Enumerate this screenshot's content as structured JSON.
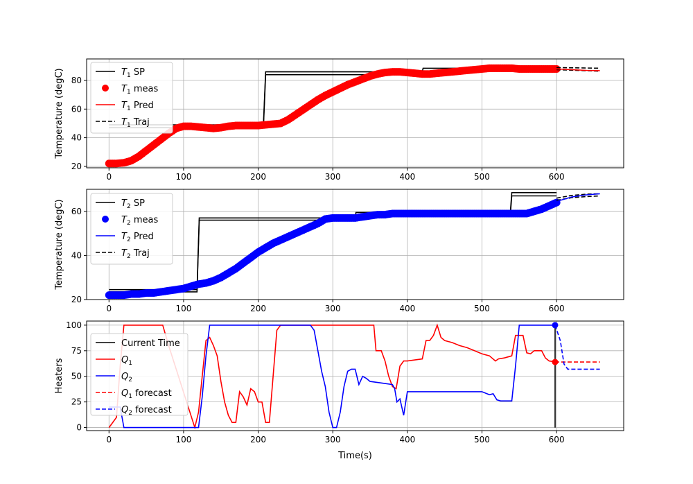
{
  "chart_data": [
    {
      "type": "line",
      "ylabel": "Temperature (degC)",
      "xlabel": "",
      "xlim": [
        -30,
        690
      ],
      "ylim": [
        19,
        95
      ],
      "xticks": [
        0,
        100,
        200,
        300,
        400,
        500,
        600
      ],
      "yticks": [
        20,
        40,
        60,
        80
      ],
      "grid": true,
      "legend_position": "upper-left",
      "legend": [
        {
          "sym": "T",
          "sub": "1",
          "suffix": " SP",
          "style": "solid",
          "color": "#000000"
        },
        {
          "sym": "T",
          "sub": "1",
          "suffix": " meas",
          "style": "marker",
          "color": "#ff0000"
        },
        {
          "sym": "T",
          "sub": "1",
          "suffix": " Pred",
          "style": "solid",
          "color": "#ff0000"
        },
        {
          "sym": "T",
          "sub": "1",
          "suffix": " Traj",
          "style": "dashed",
          "color": "#000000"
        }
      ],
      "series": [
        {
          "key": "sp_hi",
          "color": "#000000",
          "style": "solid",
          "x": [
            0,
            207,
            210,
            420,
            421,
            600
          ],
          "y": [
            49,
            49,
            86,
            86,
            88.5,
            88.5
          ]
        },
        {
          "key": "sp_lo",
          "color": "#000000",
          "style": "solid",
          "x": [
            0,
            207,
            210,
            420,
            421,
            600
          ],
          "y": [
            47,
            47,
            84,
            84,
            86.5,
            86.5
          ]
        },
        {
          "key": "meas",
          "color": "#ff0000",
          "style": "marker",
          "x": [
            0,
            10,
            20,
            30,
            40,
            50,
            60,
            70,
            80,
            90,
            100,
            110,
            120,
            130,
            140,
            150,
            160,
            170,
            180,
            190,
            200,
            210,
            220,
            230,
            240,
            250,
            260,
            270,
            280,
            290,
            300,
            310,
            320,
            330,
            340,
            350,
            360,
            370,
            380,
            390,
            400,
            410,
            420,
            430,
            440,
            450,
            460,
            470,
            480,
            490,
            500,
            510,
            520,
            530,
            540,
            550,
            560,
            570,
            580,
            590,
            600
          ],
          "y": [
            22,
            22,
            22.5,
            24,
            27,
            31,
            35,
            39,
            43,
            46.5,
            48,
            48,
            47.5,
            47,
            46.5,
            47,
            48,
            48.5,
            48.5,
            48.5,
            48.5,
            49,
            49.5,
            50,
            52.5,
            56,
            59.5,
            63,
            66.5,
            69.5,
            72,
            74.5,
            77,
            79,
            81,
            83,
            84.5,
            85.5,
            86,
            86,
            85.5,
            85,
            84.5,
            84.5,
            85,
            85.5,
            86,
            86.5,
            87,
            87.5,
            88,
            88.5,
            88.5,
            88.5,
            88.5,
            88,
            88,
            88,
            88,
            88,
            88
          ]
        },
        {
          "key": "traj_a",
          "color": "#000000",
          "style": "dashed",
          "x": [
            600,
            658
          ],
          "y": [
            89,
            88.5
          ]
        },
        {
          "key": "traj_b",
          "color": "#000000",
          "style": "dashed",
          "x": [
            600,
            658
          ],
          "y": [
            87.5,
            86.5
          ]
        },
        {
          "key": "pred",
          "color": "#ff0000",
          "style": "solid",
          "x": [
            600,
            620,
            640,
            658
          ],
          "y": [
            88,
            87.5,
            87,
            86.8
          ]
        }
      ]
    },
    {
      "type": "line",
      "ylabel": "Temperature (degC)",
      "xlabel": "",
      "xlim": [
        -30,
        690
      ],
      "ylim": [
        20,
        70
      ],
      "xticks": [
        0,
        100,
        200,
        300,
        400,
        500,
        600
      ],
      "yticks": [
        20,
        40,
        60
      ],
      "grid": true,
      "legend_position": "upper-left",
      "legend": [
        {
          "sym": "T",
          "sub": "2",
          "suffix": " SP",
          "style": "solid",
          "color": "#000000"
        },
        {
          "sym": "T",
          "sub": "2",
          "suffix": " meas",
          "style": "marker",
          "color": "#0000ff"
        },
        {
          "sym": "T",
          "sub": "2",
          "suffix": " Pred",
          "style": "solid",
          "color": "#0000ff"
        },
        {
          "sym": "T",
          "sub": "2",
          "suffix": " Traj",
          "style": "dashed",
          "color": "#000000"
        }
      ],
      "series": [
        {
          "key": "sp_hi",
          "color": "#000000",
          "style": "solid",
          "x": [
            0,
            118,
            121,
            330,
            331,
            538,
            540,
            600
          ],
          "y": [
            24.5,
            24.5,
            57,
            57,
            59.5,
            59.5,
            68.5,
            68.5
          ]
        },
        {
          "key": "sp_lo",
          "color": "#000000",
          "style": "solid",
          "x": [
            0,
            118,
            121,
            330,
            331,
            538,
            540,
            600
          ],
          "y": [
            23.5,
            23.5,
            56,
            56,
            58.5,
            58.5,
            67,
            67
          ]
        },
        {
          "key": "meas",
          "color": "#0000ff",
          "style": "marker",
          "x": [
            0,
            10,
            20,
            30,
            40,
            50,
            60,
            70,
            80,
            90,
            100,
            110,
            120,
            130,
            140,
            150,
            160,
            170,
            180,
            190,
            200,
            210,
            220,
            230,
            240,
            250,
            260,
            270,
            280,
            290,
            300,
            310,
            320,
            330,
            340,
            350,
            360,
            370,
            380,
            390,
            400,
            410,
            420,
            430,
            440,
            450,
            460,
            470,
            480,
            490,
            500,
            510,
            520,
            530,
            540,
            550,
            560,
            570,
            580,
            590,
            600
          ],
          "y": [
            22,
            22,
            22,
            22.5,
            22.5,
            23,
            23,
            23.5,
            24,
            24.5,
            25,
            26,
            27,
            27.5,
            28.5,
            30,
            32,
            34,
            36.5,
            39,
            41.5,
            43.5,
            45.5,
            47,
            48.5,
            50,
            51.5,
            53,
            54.5,
            56.5,
            57,
            57,
            57,
            57,
            57.5,
            58,
            58.5,
            58.5,
            59,
            59,
            59,
            59,
            59,
            59,
            59,
            59,
            59,
            59,
            59,
            59,
            59,
            59,
            59,
            59,
            59,
            59,
            59,
            60,
            61,
            62.5,
            64
          ]
        },
        {
          "key": "traj_a",
          "color": "#000000",
          "style": "dashed",
          "x": [
            600,
            620,
            640,
            658
          ],
          "y": [
            66,
            67.2,
            67.8,
            68
          ]
        },
        {
          "key": "traj_b",
          "color": "#000000",
          "style": "dashed",
          "x": [
            600,
            620,
            640,
            658
          ],
          "y": [
            65,
            66.2,
            66.7,
            67
          ]
        },
        {
          "key": "pred",
          "color": "#0000ff",
          "style": "solid",
          "x": [
            600,
            620,
            640,
            658
          ],
          "y": [
            64.5,
            66.5,
            67.5,
            68
          ]
        }
      ]
    },
    {
      "type": "line",
      "ylabel": "Heaters",
      "xlabel": "Time(s)",
      "xlim": [
        -30,
        690
      ],
      "ylim": [
        -3,
        104
      ],
      "xticks": [
        0,
        100,
        200,
        300,
        400,
        500,
        600
      ],
      "yticks": [
        0,
        25,
        50,
        75,
        100
      ],
      "grid": true,
      "legend_position": "upper-left",
      "legend": [
        {
          "sym": "",
          "sub": "",
          "suffix": "Current Time",
          "style": "solid",
          "color": "#000000"
        },
        {
          "sym": "Q",
          "sub": "1",
          "suffix": "",
          "style": "solid",
          "color": "#ff0000"
        },
        {
          "sym": "Q",
          "sub": "2",
          "suffix": "",
          "style": "solid",
          "color": "#0000ff"
        },
        {
          "sym": "Q",
          "sub": "1",
          "suffix": " forecast",
          "style": "dashed",
          "color": "#ff0000"
        },
        {
          "sym": "Q",
          "sub": "2",
          "suffix": " forecast",
          "style": "dashed",
          "color": "#0000ff"
        }
      ],
      "series": [
        {
          "key": "current_time",
          "color": "#000000",
          "style": "solid",
          "x": [
            598,
            598
          ],
          "y": [
            0,
            100
          ]
        },
        {
          "key": "Q1",
          "color": "#ff0000",
          "style": "solid",
          "x": [
            0,
            10,
            15,
            20,
            72,
            80,
            115,
            120,
            125,
            130,
            135,
            140,
            145,
            150,
            155,
            160,
            165,
            170,
            175,
            180,
            185,
            190,
            195,
            200,
            205,
            210,
            215,
            220,
            225,
            230,
            240,
            250,
            260,
            270,
            280,
            290,
            300,
            310,
            320,
            330,
            340,
            355,
            358,
            365,
            370,
            375,
            380,
            385,
            390,
            395,
            400,
            410,
            420,
            425,
            430,
            435,
            440,
            445,
            450,
            460,
            470,
            480,
            490,
            500,
            510,
            518,
            522,
            530,
            540,
            545,
            548,
            555,
            560,
            565,
            570,
            580,
            585,
            590,
            600
          ],
          "y": [
            0,
            10,
            60,
            100,
            100,
            80,
            0,
            15,
            50,
            85,
            88,
            80,
            70,
            45,
            25,
            12,
            5,
            5,
            35,
            30,
            22,
            38,
            35,
            25,
            25,
            5,
            5,
            50,
            95,
            100,
            100,
            100,
            100,
            100,
            100,
            100,
            100,
            100,
            100,
            100,
            100,
            100,
            75,
            75,
            65,
            50,
            40,
            38,
            60,
            65,
            65,
            66,
            67,
            85,
            85,
            90,
            100,
            88,
            85,
            83,
            80,
            78,
            75,
            72,
            70,
            65,
            67,
            68,
            70,
            90,
            90,
            90,
            73,
            72,
            75,
            75,
            68,
            65,
            64
          ]
        },
        {
          "key": "Q2",
          "color": "#0000ff",
          "style": "solid",
          "x": [
            0,
            10,
            15,
            20,
            110,
            120,
            125,
            130,
            135,
            140,
            210,
            220,
            230,
            270,
            275,
            280,
            285,
            290,
            295,
            300,
            305,
            310,
            315,
            320,
            325,
            330,
            335,
            340,
            345,
            350,
            360,
            370,
            380,
            383,
            386,
            390,
            395,
            400,
            410,
            420,
            500,
            510,
            515,
            520,
            525,
            540,
            545,
            550,
            560,
            600
          ],
          "y": [
            20,
            20,
            20,
            0,
            0,
            0,
            30,
            70,
            100,
            100,
            100,
            100,
            100,
            100,
            95,
            75,
            55,
            40,
            15,
            0,
            0,
            15,
            40,
            55,
            57,
            57,
            42,
            50,
            48,
            45,
            44,
            43,
            42,
            38,
            25,
            28,
            12,
            35,
            35,
            35,
            35,
            32,
            33,
            27,
            26,
            26,
            60,
            100,
            100,
            100
          ]
        },
        {
          "key": "Q1_forecast",
          "color": "#ff0000",
          "style": "dashed",
          "x": [
            598,
            658
          ],
          "y": [
            64,
            64
          ]
        },
        {
          "key": "Q2_forecast",
          "color": "#0000ff",
          "style": "dashed",
          "x": [
            598,
            605,
            610,
            615,
            620,
            658
          ],
          "y": [
            100,
            85,
            62,
            57,
            57,
            57
          ]
        },
        {
          "key": "Q1_now",
          "color": "#ff0000",
          "style": "dot",
          "x": [
            598
          ],
          "y": [
            64
          ]
        },
        {
          "key": "Q2_now",
          "color": "#0000ff",
          "style": "dot",
          "x": [
            598
          ],
          "y": [
            100
          ]
        }
      ]
    }
  ]
}
